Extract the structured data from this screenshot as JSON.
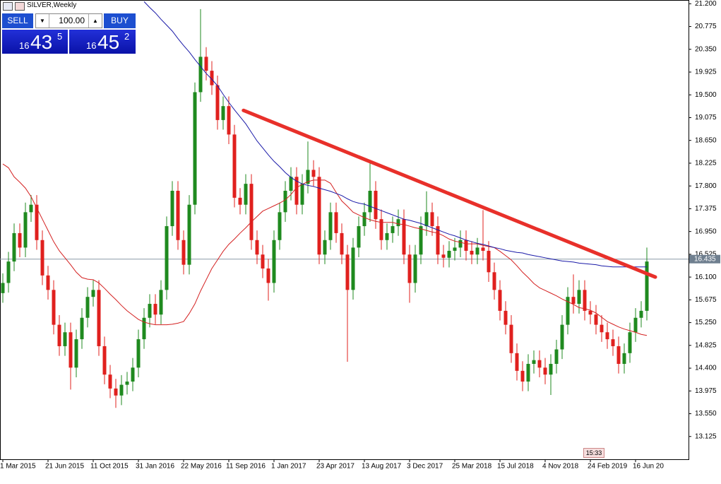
{
  "header": {
    "symbol": "SILVER,Weekly"
  },
  "trade_panel": {
    "sell_label": "SELL",
    "buy_label": "BUY",
    "volume": "100.00",
    "sell_price": {
      "big": "16",
      "main": "43",
      "small": "5"
    },
    "buy_price": {
      "big": "16",
      "main": "45",
      "small": "2"
    }
  },
  "time_marker": "15:33",
  "chart_data": {
    "type": "candlestick",
    "up_color": "#1f8a1f",
    "down_color": "#e0201e",
    "categories": [
      "1 Mar 2015",
      null,
      null,
      null,
      null,
      null,
      null,
      null,
      "21 Jun 2015",
      null,
      null,
      null,
      null,
      null,
      null,
      null,
      "11 Oct 2015",
      null,
      null,
      null,
      null,
      null,
      null,
      null,
      "31 Jan 2016",
      null,
      null,
      null,
      null,
      null,
      null,
      null,
      "22 May 2016",
      null,
      null,
      null,
      null,
      null,
      null,
      null,
      "11 Sep 2016",
      null,
      null,
      null,
      null,
      null,
      null,
      null,
      "1 Jan 2017",
      null,
      null,
      null,
      null,
      null,
      null,
      null,
      "23 Apr 2017",
      null,
      null,
      null,
      null,
      null,
      null,
      null,
      "13 Aug 2017",
      null,
      null,
      null,
      null,
      null,
      null,
      null,
      "3 Dec 2017",
      null,
      null,
      null,
      null,
      null,
      null,
      null,
      "25 Mar 2018",
      null,
      null,
      null,
      null,
      null,
      null,
      null,
      "15 Jul 2018",
      null,
      null,
      null,
      null,
      null,
      null,
      null,
      "4 Nov 2018",
      null,
      null,
      null,
      null,
      null,
      null,
      null,
      "24 Feb 2019",
      null,
      null,
      null,
      null,
      null,
      null,
      null,
      "16 Jun 20",
      null,
      null
    ],
    "open": [
      15.8,
      15.99,
      16.39,
      16.92,
      16.65,
      17.31,
      17.45,
      16.79,
      16.13,
      15.86,
      15.21,
      14.81,
      15.07,
      14.41,
      14.94,
      15.34,
      15.73,
      15.86,
      14.81,
      14.28,
      14.02,
      13.89,
      14.09,
      14.15,
      14.41,
      14.94,
      15.34,
      15.6,
      15.4,
      15.86,
      17.05,
      17.71,
      16.79,
      16.33,
      17.45,
      19.55,
      20.21,
      19.95,
      19.68,
      19.03,
      19.29,
      18.76,
      17.58,
      17.45,
      17.84,
      16.79,
      16.52,
      16.26,
      15.99,
      16.79,
      17.31,
      17.71,
      17.97,
      17.45,
      17.84,
      18.1,
      17.97,
      16.52,
      16.79,
      17.31,
      16.92,
      16.52,
      15.86,
      16.65,
      17.05,
      17.31,
      17.71,
      17.18,
      16.79,
      16.92,
      17.05,
      17.18,
      16.52,
      15.99,
      16.52,
      17.05,
      17.31,
      17.05,
      16.52,
      16.46,
      16.59,
      16.65,
      16.79,
      16.59,
      16.52,
      16.65,
      16.59,
      16.19,
      15.86,
      15.47,
      15.21,
      14.68,
      14.35,
      14.15,
      14.48,
      14.55,
      14.41,
      14.28,
      14.48,
      14.75,
      15.21,
      15.73,
      15.6,
      15.86,
      15.47,
      15.4,
      15.21,
      15.07,
      14.94,
      14.81,
      14.48,
      14.68,
      15.07,
      15.34,
      15.47
    ],
    "high": [
      16.17,
      16.57,
      17.1,
      17.1,
      17.49,
      17.63,
      17.63,
      16.97,
      16.31,
      16.04,
      15.39,
      15.25,
      15.25,
      15.12,
      15.52,
      15.91,
      16.04,
      16.04,
      14.99,
      14.46,
      14.2,
      14.27,
      14.33,
      14.59,
      15.12,
      15.52,
      15.78,
      15.78,
      16.04,
      17.23,
      17.89,
      17.89,
      16.97,
      17.63,
      19.73,
      21.1,
      20.39,
      20.13,
      19.86,
      19.47,
      19.47,
      18.94,
      17.76,
      18.02,
      18.02,
      16.97,
      16.7,
      16.44,
      16.97,
      17.49,
      17.89,
      18.15,
      18.15,
      18.02,
      18.63,
      18.28,
      18.15,
      16.97,
      17.49,
      17.49,
      17.1,
      16.7,
      16.83,
      17.23,
      17.49,
      18.24,
      17.89,
      17.36,
      17.1,
      17.23,
      17.36,
      17.36,
      16.7,
      16.7,
      17.23,
      17.7,
      17.49,
      17.23,
      16.7,
      16.77,
      16.83,
      16.97,
      16.97,
      16.77,
      16.83,
      17.35,
      16.77,
      16.37,
      16.04,
      15.65,
      15.39,
      14.86,
      14.53,
      14.66,
      14.73,
      14.73,
      14.59,
      14.66,
      14.93,
      15.39,
      15.91,
      16.15,
      16.04,
      16.04,
      15.65,
      15.58,
      15.39,
      15.25,
      15.12,
      14.99,
      14.86,
      15.25,
      15.52,
      15.65,
      16.65
    ],
    "low": [
      15.62,
      15.81,
      16.21,
      16.47,
      16.47,
      17.13,
      16.61,
      15.95,
      15.68,
      15.03,
      14.63,
      14.63,
      14.0,
      14.23,
      14.76,
      15.16,
      15.55,
      14.63,
      14.1,
      13.84,
      13.66,
      13.71,
      13.91,
      13.97,
      14.23,
      14.76,
      15.16,
      15.22,
      15.22,
      15.68,
      16.87,
      16.61,
      16.15,
      16.15,
      17.27,
      19.37,
      19.77,
      19.5,
      18.85,
      18.85,
      18.58,
      17.4,
      17.27,
      17.27,
      16.61,
      16.34,
      16.08,
      15.66,
      15.81,
      16.61,
      17.13,
      17.53,
      17.27,
      17.27,
      17.66,
      17.79,
      16.34,
      16.34,
      16.61,
      16.74,
      16.34,
      14.52,
      15.68,
      16.47,
      16.87,
      17.13,
      17.0,
      16.61,
      16.61,
      16.74,
      16.87,
      16.34,
      15.62,
      15.81,
      16.34,
      16.87,
      16.87,
      16.34,
      16.28,
      16.28,
      16.41,
      16.47,
      16.41,
      16.34,
      16.34,
      16.41,
      16.01,
      15.68,
      15.29,
      15.03,
      14.5,
      14.17,
      13.97,
      13.97,
      14.3,
      14.23,
      14.1,
      13.9,
      14.3,
      14.57,
      15.03,
      15.42,
      15.42,
      15.29,
      15.22,
      15.03,
      14.89,
      14.76,
      14.63,
      14.3,
      14.3,
      14.5,
      14.89,
      15.16,
      15.29
    ],
    "close": [
      15.99,
      16.39,
      16.92,
      16.65,
      17.31,
      17.45,
      16.79,
      16.13,
      15.86,
      15.21,
      14.81,
      15.07,
      14.41,
      14.94,
      15.34,
      15.73,
      15.86,
      14.81,
      14.28,
      14.02,
      13.89,
      14.09,
      14.15,
      14.41,
      14.94,
      15.34,
      15.6,
      15.4,
      15.86,
      17.05,
      17.71,
      16.79,
      16.33,
      17.45,
      19.55,
      20.21,
      19.95,
      19.68,
      19.03,
      19.29,
      18.76,
      17.58,
      17.45,
      17.84,
      16.79,
      16.52,
      16.26,
      15.99,
      16.79,
      17.31,
      17.71,
      17.97,
      17.45,
      17.84,
      18.1,
      17.97,
      16.52,
      16.79,
      17.31,
      16.92,
      16.52,
      15.86,
      16.65,
      17.05,
      17.31,
      17.71,
      17.18,
      16.79,
      16.92,
      17.05,
      17.18,
      16.52,
      15.99,
      16.52,
      17.05,
      17.31,
      17.05,
      16.52,
      16.46,
      16.59,
      16.65,
      16.79,
      16.59,
      16.52,
      16.65,
      16.59,
      16.19,
      15.86,
      15.47,
      15.21,
      14.68,
      14.35,
      14.15,
      14.48,
      14.55,
      14.41,
      14.28,
      14.48,
      14.75,
      15.21,
      15.73,
      15.6,
      15.86,
      15.47,
      15.4,
      15.21,
      15.07,
      14.94,
      14.81,
      14.48,
      14.68,
      15.07,
      15.34,
      15.47,
      16.39
    ],
    "moving_averages": [
      {
        "color": "#d42020",
        "values": [
          18.21,
          18.14,
          17.97,
          17.87,
          17.76,
          17.6,
          17.39,
          17.18,
          16.97,
          16.76,
          16.59,
          16.46,
          16.33,
          16.19,
          16.09,
          16.06,
          16.05,
          15.99,
          15.89,
          15.78,
          15.68,
          15.57,
          15.47,
          15.39,
          15.31,
          15.26,
          15.23,
          15.21,
          15.21,
          15.21,
          15.22,
          15.24,
          15.27,
          15.42,
          15.6,
          15.84,
          16.05,
          16.26,
          16.42,
          16.58,
          16.71,
          16.81,
          16.92,
          17.02,
          17.13,
          17.23,
          17.33,
          17.38,
          17.43,
          17.48,
          17.54,
          17.64,
          17.77,
          17.83,
          17.88,
          17.91,
          17.91,
          17.91,
          17.85,
          17.68,
          17.52,
          17.42,
          17.31,
          17.26,
          17.21,
          17.17,
          17.14,
          17.12,
          17.12,
          17.12,
          17.09,
          17.08,
          17.05,
          17.02,
          17.0,
          16.97,
          16.94,
          16.92,
          16.87,
          16.81,
          16.77,
          16.75,
          16.72,
          16.72,
          16.72,
          16.69,
          16.67,
          16.65,
          16.58,
          16.5,
          16.42,
          16.31,
          16.19,
          16.09,
          15.98,
          15.9,
          15.85,
          15.8,
          15.75,
          15.69,
          15.64,
          15.59,
          15.53,
          15.51,
          15.48,
          15.43,
          15.35,
          15.27,
          15.22,
          15.17,
          15.13,
          15.1,
          15.07,
          15.03,
          15.01
        ]
      },
      {
        "color": "#1a1aa8",
        "values": [
          null,
          null,
          null,
          null,
          null,
          null,
          null,
          null,
          null,
          null,
          null,
          null,
          null,
          null,
          null,
          null,
          null,
          null,
          null,
          null,
          null,
          null,
          null,
          null,
          null,
          21.24,
          21.13,
          21.03,
          20.91,
          20.8,
          20.69,
          20.55,
          20.42,
          20.3,
          20.16,
          20.03,
          19.9,
          19.79,
          19.67,
          19.51,
          19.36,
          19.22,
          19.09,
          18.96,
          18.8,
          18.64,
          18.51,
          18.38,
          18.26,
          18.16,
          18.05,
          17.96,
          17.89,
          17.84,
          17.81,
          17.79,
          17.76,
          17.73,
          17.7,
          17.66,
          17.62,
          17.56,
          17.51,
          17.48,
          17.46,
          17.42,
          17.38,
          17.34,
          17.3,
          17.26,
          17.22,
          17.18,
          17.16,
          17.13,
          17.1,
          17.06,
          17.02,
          16.98,
          16.94,
          16.9,
          16.87,
          16.83,
          16.79,
          16.76,
          16.73,
          16.71,
          16.68,
          16.65,
          16.63,
          16.6,
          16.58,
          16.56,
          16.55,
          16.52,
          16.5,
          16.48,
          16.46,
          16.44,
          16.42,
          16.4,
          16.39,
          16.38,
          16.36,
          16.35,
          16.34,
          16.33,
          16.31,
          16.3,
          16.29,
          16.29,
          16.29,
          16.29,
          16.29,
          16.29,
          16.29
        ]
      }
    ],
    "trendline": {
      "color": "#e8302a",
      "x": [
        42.6,
        115.5
      ],
      "values": [
        19.21,
        16.1
      ]
    },
    "price_line": {
      "value": 16.435,
      "label": "16.435"
    },
    "ylim": [
      12.7,
      21.27
    ],
    "yticks": [
      {
        "value": 21.2,
        "label": "21.200"
      },
      {
        "value": 20.775,
        "label": "20.775"
      },
      {
        "value": 20.35,
        "label": "20.350"
      },
      {
        "value": 19.925,
        "label": "19.925"
      },
      {
        "value": 19.5,
        "label": "19.500"
      },
      {
        "value": 19.075,
        "label": "19.075"
      },
      {
        "value": 18.65,
        "label": "18.650"
      },
      {
        "value": 18.225,
        "label": "18.225"
      },
      {
        "value": 17.8,
        "label": "17.800"
      },
      {
        "value": 17.375,
        "label": "17.375"
      },
      {
        "value": 16.95,
        "label": "16.950"
      },
      {
        "value": 16.525,
        "label": "16.525"
      },
      {
        "value": 16.1,
        "label": "16.100"
      },
      {
        "value": 15.675,
        "label": "15.675"
      },
      {
        "value": 15.25,
        "label": "15.250"
      },
      {
        "value": 14.825,
        "label": "14.825"
      },
      {
        "value": 14.4,
        "label": "14.400"
      },
      {
        "value": 13.975,
        "label": "13.975"
      },
      {
        "value": 13.55,
        "label": "13.550"
      },
      {
        "value": 13.125,
        "label": "13.125"
      }
    ]
  }
}
